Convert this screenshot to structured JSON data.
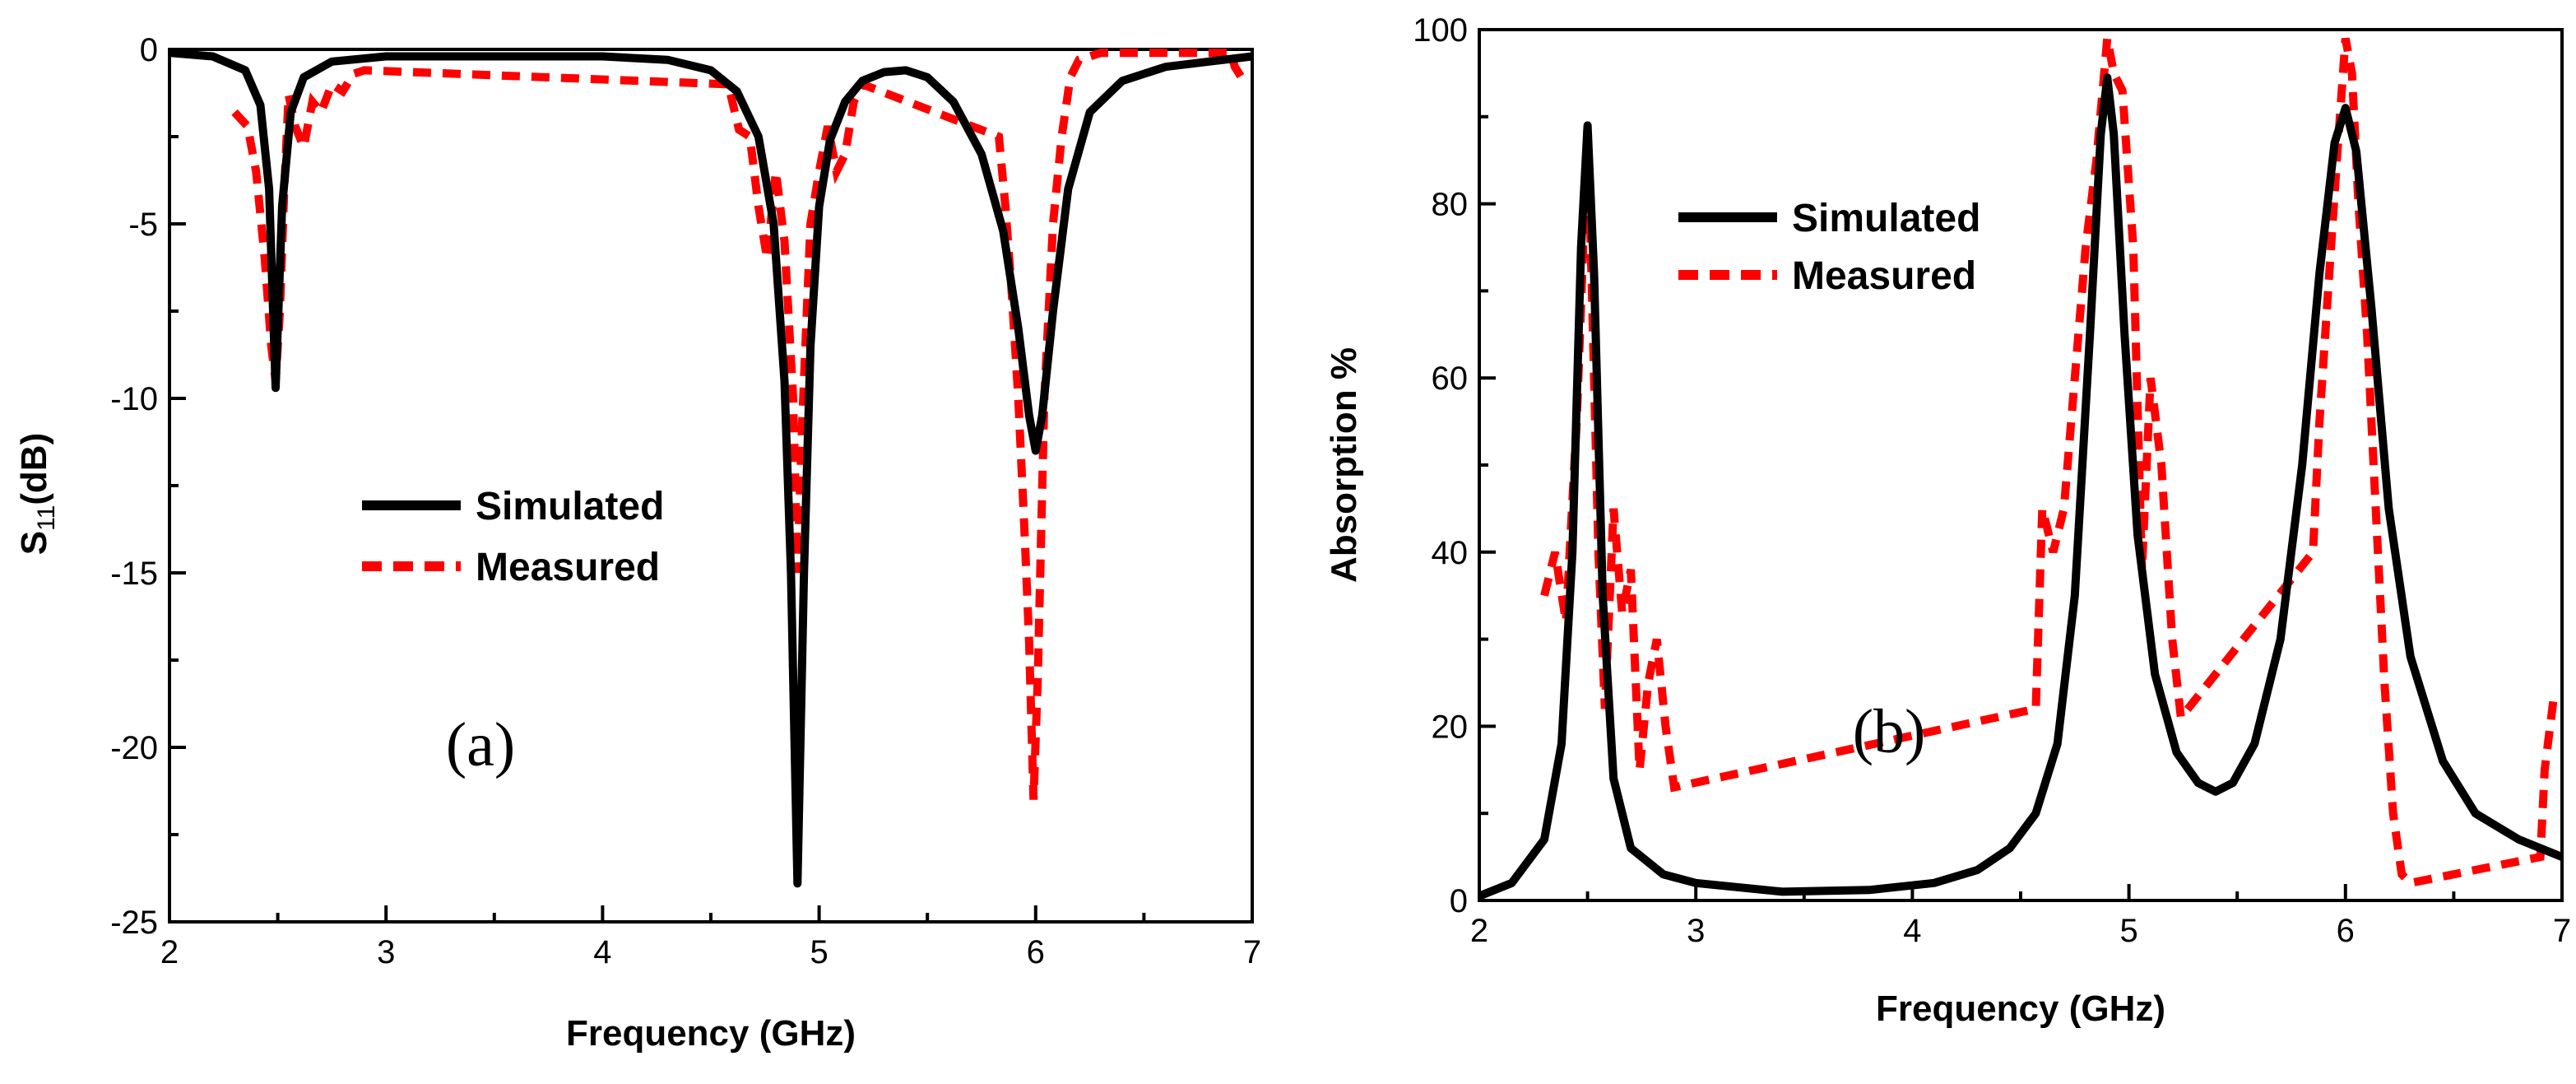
{
  "chart_data": [
    {
      "type": "line",
      "panel_label": "(a)",
      "xlabel": "Frequency (GHz)",
      "ylabel_main": "S",
      "ylabel_sub": "11",
      "ylabel_tail": "(dB)",
      "xlim": [
        2,
        7
      ],
      "ylim": [
        -25,
        0
      ],
      "xticks": [
        2,
        3,
        4,
        5,
        6,
        7
      ],
      "yticks": [
        0,
        -5,
        -10,
        -15,
        -20,
        -25
      ],
      "legend": {
        "placement": "center",
        "entries": [
          "Simulated",
          "Measured"
        ]
      },
      "series": [
        {
          "name": "Simulated",
          "color": "#000000",
          "style": "solid",
          "x": [
            2.0,
            2.2,
            2.35,
            2.42,
            2.46,
            2.49,
            2.52,
            2.56,
            2.62,
            2.75,
            3.0,
            3.5,
            4.0,
            4.3,
            4.5,
            4.62,
            4.72,
            4.79,
            4.84,
            4.87,
            4.9,
            4.93,
            4.96,
            5.0,
            5.05,
            5.12,
            5.2,
            5.3,
            5.4,
            5.5,
            5.62,
            5.75,
            5.85,
            5.92,
            5.97,
            6.0,
            6.03,
            6.08,
            6.15,
            6.25,
            6.4,
            6.6,
            6.8,
            7.0
          ],
          "y": [
            -0.1,
            -0.2,
            -0.6,
            -1.6,
            -4.0,
            -9.7,
            -4.5,
            -1.8,
            -0.8,
            -0.35,
            -0.2,
            -0.2,
            -0.2,
            -0.3,
            -0.6,
            -1.2,
            -2.5,
            -5.0,
            -9.5,
            -15.0,
            -23.9,
            -15.0,
            -8.5,
            -4.5,
            -2.6,
            -1.5,
            -0.9,
            -0.65,
            -0.6,
            -0.8,
            -1.5,
            -3.0,
            -5.2,
            -8.0,
            -10.5,
            -11.5,
            -10.5,
            -7.5,
            -4.0,
            -1.8,
            -0.9,
            -0.5,
            -0.35,
            -0.2
          ]
        },
        {
          "name": "Measured",
          "color": "#ff0000",
          "style": "dashed",
          "x": [
            2.3,
            2.36,
            2.4,
            2.44,
            2.47,
            2.49,
            2.51,
            2.53,
            2.55,
            2.58,
            2.62,
            2.66,
            2.7,
            2.75,
            2.8,
            2.85,
            2.9,
            4.58,
            4.63,
            4.68,
            4.72,
            4.76,
            4.8,
            4.84,
            4.88,
            4.9,
            4.92,
            4.96,
            5.0,
            5.04,
            5.08,
            5.12,
            5.16,
            5.2,
            5.83,
            5.86,
            5.89,
            5.92,
            5.95,
            5.97,
            5.99,
            6.01,
            6.04,
            6.08,
            6.12,
            6.16,
            6.2,
            6.25,
            6.3,
            6.9,
            6.92,
            6.95
          ],
          "y": [
            -1.8,
            -2.2,
            -3.5,
            -6.0,
            -8.5,
            -9.5,
            -7.5,
            -4.0,
            -1.3,
            -2.2,
            -2.8,
            -1.5,
            -1.8,
            -1.0,
            -1.2,
            -0.7,
            -0.6,
            -1.0,
            -2.3,
            -2.5,
            -4.5,
            -6.0,
            -3.5,
            -5.5,
            -10.0,
            -15.0,
            -11.0,
            -5.0,
            -3.5,
            -2.2,
            -3.5,
            -3.0,
            -1.5,
            -1.0,
            -2.5,
            -4.5,
            -7.0,
            -10.0,
            -14.0,
            -17.0,
            -21.5,
            -18.0,
            -10.0,
            -5.0,
            -2.5,
            -0.8,
            -0.3,
            -0.2,
            -0.1,
            -0.1,
            -0.5,
            -0.8
          ]
        }
      ]
    },
    {
      "type": "line",
      "panel_label": "(b)",
      "xlabel": "Frequency (GHz)",
      "ylabel": "Absorption %",
      "xlim": [
        2,
        7
      ],
      "ylim": [
        0,
        100
      ],
      "xticks": [
        2,
        3,
        4,
        5,
        6,
        7
      ],
      "yticks": [
        0,
        20,
        40,
        60,
        80,
        100
      ],
      "legend": {
        "placement": "upper-center",
        "entries": [
          "Simulated",
          "Measured"
        ]
      },
      "series": [
        {
          "name": "Simulated",
          "color": "#000000",
          "style": "solid",
          "x": [
            2.0,
            2.15,
            2.3,
            2.38,
            2.43,
            2.47,
            2.5,
            2.53,
            2.57,
            2.62,
            2.7,
            2.85,
            3.0,
            3.4,
            3.8,
            4.1,
            4.3,
            4.45,
            4.57,
            4.67,
            4.75,
            4.82,
            4.87,
            4.9,
            4.93,
            4.98,
            5.04,
            5.12,
            5.22,
            5.32,
            5.4,
            5.48,
            5.58,
            5.7,
            5.8,
            5.88,
            5.95,
            6.0,
            6.05,
            6.12,
            6.2,
            6.3,
            6.45,
            6.6,
            6.8,
            7.0
          ],
          "y": [
            0.5,
            2.0,
            7.0,
            18.0,
            40.0,
            75.0,
            89.0,
            72.0,
            35.0,
            14.0,
            6.0,
            3.0,
            2.0,
            1.0,
            1.2,
            2.0,
            3.5,
            6.0,
            10.0,
            18.0,
            35.0,
            65.0,
            88.0,
            94.5,
            88.0,
            65.0,
            42.0,
            26.0,
            17.0,
            13.5,
            12.5,
            13.5,
            18.0,
            30.0,
            50.0,
            72.0,
            87.0,
            91.0,
            86.0,
            68.0,
            45.0,
            28.0,
            16.0,
            10.0,
            7.0,
            5.0
          ]
        },
        {
          "name": "Measured",
          "color": "#ff0000",
          "style": "dashed",
          "x": [
            2.3,
            2.35,
            2.4,
            2.45,
            2.48,
            2.5,
            2.52,
            2.55,
            2.58,
            2.62,
            2.66,
            2.7,
            2.74,
            2.78,
            2.82,
            2.86,
            2.9,
            4.57,
            4.6,
            4.65,
            4.7,
            4.75,
            4.8,
            4.85,
            4.9,
            4.93,
            4.97,
            5.02,
            5.06,
            5.1,
            5.15,
            5.2,
            5.24,
            5.85,
            5.88,
            5.92,
            5.96,
            6.0,
            6.03,
            6.06,
            6.1,
            6.14,
            6.18,
            6.22,
            6.26,
            6.3,
            6.9,
            6.92,
            6.96
          ],
          "y": [
            35.0,
            40.0,
            32.0,
            55.0,
            75.0,
            89.0,
            70.0,
            40.0,
            22.0,
            45.0,
            33.0,
            38.0,
            15.0,
            25.0,
            30.0,
            20.0,
            13.0,
            22.0,
            45.0,
            40.0,
            45.0,
            60.0,
            75.0,
            85.0,
            99.0,
            95.0,
            93.0,
            75.0,
            38.0,
            60.0,
            50.0,
            30.0,
            21.0,
            40.0,
            55.0,
            70.0,
            85.0,
            99.0,
            95.0,
            80.0,
            65.0,
            45.0,
            25.0,
            10.0,
            3.0,
            2.0,
            5.0,
            15.0,
            23.0
          ]
        }
      ]
    }
  ]
}
